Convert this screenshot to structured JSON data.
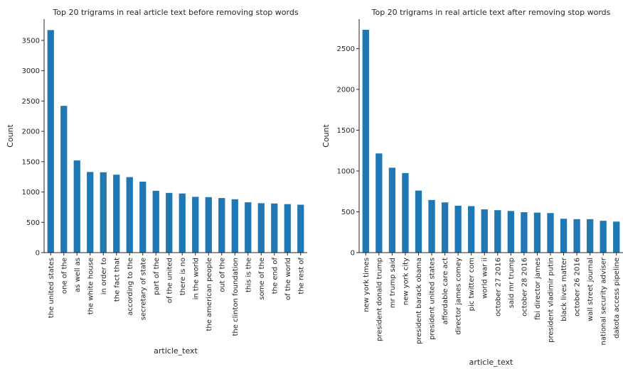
{
  "chart_data": [
    {
      "type": "bar",
      "title": "Top 20 trigrams in real article text before removing stop words",
      "xlabel": "article_text",
      "ylabel": "Count",
      "ylim": [
        0,
        3850
      ],
      "yticks": [
        0,
        500,
        1000,
        1500,
        2000,
        2500,
        3000,
        3500
      ],
      "color": "#1f77b4",
      "grid": false,
      "categories": [
        "the united states",
        "one of the",
        "as well as",
        "the white house",
        "in order to",
        "the fact that",
        "according to the",
        "secretary of state",
        "part of the",
        "of the united",
        "there is no",
        "in the world",
        "the american people",
        "out of the",
        "the clinton foundation",
        "this is the",
        "some of the",
        "the end of",
        "of the world",
        "the rest of"
      ],
      "values": [
        3670,
        2420,
        1520,
        1330,
        1325,
        1285,
        1245,
        1170,
        1020,
        985,
        975,
        920,
        915,
        900,
        880,
        830,
        815,
        810,
        800,
        790
      ]
    },
    {
      "type": "bar",
      "title": "Top 20 trigrams in real article text after removing stop words",
      "xlabel": "article_text",
      "ylabel": "Count",
      "ylim": [
        0,
        2860
      ],
      "yticks": [
        0,
        500,
        1000,
        1500,
        2000,
        2500
      ],
      "color": "#1f77b4",
      "grid": false,
      "categories": [
        "new york times",
        "president donald trump",
        "mr trump said",
        "new york city",
        "president barack obama",
        "president united states",
        "affordable care act",
        "director james comey",
        "pic twitter com",
        "world war ii",
        "october 27 2016",
        "said mr trump",
        "october 28 2016",
        "fbi director james",
        "president vladimir putin",
        "black lives matter",
        "october 26 2016",
        "wall street journal",
        "national security adviser",
        "dakota access pipeline"
      ],
      "values": [
        2730,
        1215,
        1040,
        975,
        760,
        645,
        615,
        575,
        570,
        530,
        520,
        510,
        495,
        490,
        485,
        415,
        410,
        410,
        390,
        380
      ]
    }
  ]
}
